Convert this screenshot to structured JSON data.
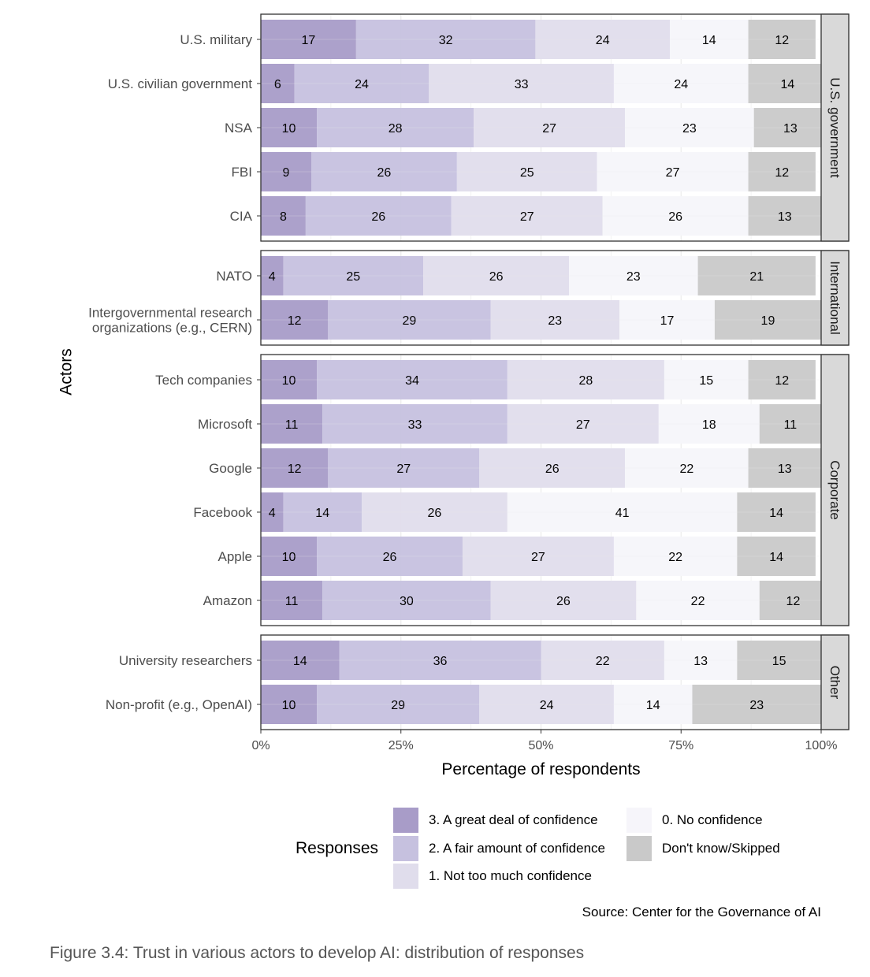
{
  "chart_data": {
    "type": "bar",
    "orientation": "horizontal",
    "stacked": true,
    "xlabel": "Percentage of respondents",
    "ylabel": "Actors",
    "xlim": [
      0,
      100
    ],
    "x_ticks": [
      "0%",
      "25%",
      "50%",
      "75%",
      "100%"
    ],
    "grid": true,
    "legend_title": "Responses",
    "legend_position": "bottom",
    "series": [
      {
        "name": "3. A great deal of confidence",
        "color": "#a89cc8"
      },
      {
        "name": "2. A fair amount of confidence",
        "color": "#c6c1df"
      },
      {
        "name": "1. Not too much confidence",
        "color": "#e0ddec"
      },
      {
        "name": "0. No confidence",
        "color": "#f6f5fa"
      },
      {
        "name": "Don't know/Skipped",
        "color": "#c9c9c9"
      }
    ],
    "panels": [
      {
        "label": "U.S. government",
        "rows": [
          {
            "actor": "U.S. military",
            "values": [
              17,
              32,
              24,
              14,
              12
            ]
          },
          {
            "actor": "U.S. civilian government",
            "values": [
              6,
              24,
              33,
              24,
              14
            ]
          },
          {
            "actor": "NSA",
            "values": [
              10,
              28,
              27,
              23,
              13
            ]
          },
          {
            "actor": "FBI",
            "values": [
              9,
              26,
              25,
              27,
              12
            ]
          },
          {
            "actor": "CIA",
            "values": [
              8,
              26,
              27,
              26,
              13
            ]
          }
        ]
      },
      {
        "label": "International",
        "rows": [
          {
            "actor": "NATO",
            "values": [
              4,
              25,
              26,
              23,
              21
            ]
          },
          {
            "actor": "Intergovernmental research\norganizations (e.g., CERN)",
            "values": [
              12,
              29,
              23,
              17,
              19
            ]
          }
        ]
      },
      {
        "label": "Corporate",
        "rows": [
          {
            "actor": "Tech companies",
            "values": [
              10,
              34,
              28,
              15,
              12
            ]
          },
          {
            "actor": "Microsoft",
            "values": [
              11,
              33,
              27,
              18,
              11
            ]
          },
          {
            "actor": "Google",
            "values": [
              12,
              27,
              26,
              22,
              13
            ]
          },
          {
            "actor": "Facebook",
            "values": [
              4,
              14,
              26,
              41,
              14
            ]
          },
          {
            "actor": "Apple",
            "values": [
              10,
              26,
              27,
              22,
              14
            ]
          },
          {
            "actor": "Amazon",
            "values": [
              11,
              30,
              26,
              22,
              12
            ]
          }
        ]
      },
      {
        "label": "Other",
        "rows": [
          {
            "actor": "University researchers",
            "values": [
              14,
              36,
              22,
              13,
              15
            ]
          },
          {
            "actor": "Non-profit (e.g., OpenAI)",
            "values": [
              10,
              29,
              24,
              14,
              23
            ]
          }
        ]
      }
    ]
  },
  "source": "Source: Center for the Governance of AI",
  "caption": "Figure 3.4: Trust in various actors to develop AI: distribution of responses"
}
